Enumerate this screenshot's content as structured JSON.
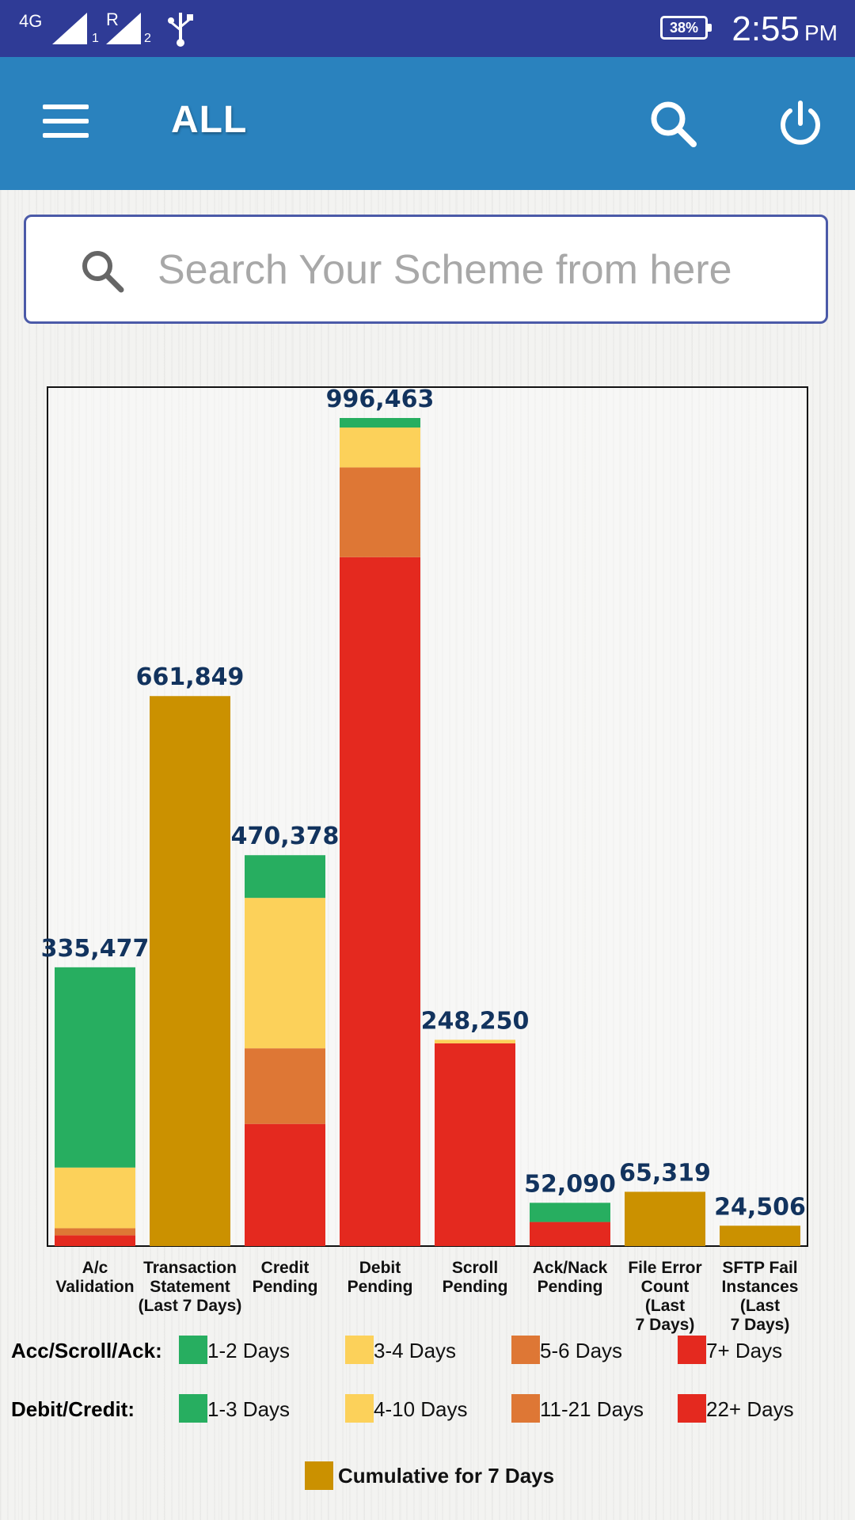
{
  "status_bar": {
    "network": "4G",
    "sim1": "1",
    "roaming": "R",
    "sim2": "2",
    "battery": "38%",
    "time": "2:55",
    "ampm": "PM"
  },
  "app_bar": {
    "title": "ALL",
    "menu_icon": "hamburger-menu-icon",
    "search_icon": "search-icon",
    "power_icon": "power-icon"
  },
  "search": {
    "placeholder": "Search Your Scheme from here",
    "icon": "search-icon"
  },
  "colors": {
    "green": "#27ae60",
    "yellow": "#fcd15a",
    "orange": "#de7735",
    "red": "#e4291f",
    "gold": "#cb9100",
    "value_label": "#12335e"
  },
  "chart_data": {
    "type": "bar",
    "stacked": true,
    "categories": [
      [
        "A/c",
        "Validation"
      ],
      [
        "Transaction",
        "Statement",
        "(Last 7 Days)"
      ],
      [
        "Credit",
        "Pending"
      ],
      [
        "Debit",
        "Pending"
      ],
      [
        "Scroll",
        "Pending"
      ],
      [
        "Ack/Nack",
        "Pending"
      ],
      [
        "File Error",
        "Count",
        "(Last",
        "7 Days)"
      ],
      [
        "SFTP Fail",
        "Instances",
        "(Last",
        "7 Days)"
      ]
    ],
    "totals": [
      335477,
      661849,
      470378,
      996463,
      248250,
      52090,
      65319,
      24506
    ],
    "total_labels": [
      "335,477",
      "661,849",
      "470,378",
      "996,463",
      "248,250",
      "52,090",
      "65,319",
      "24,506"
    ],
    "segments": [
      [
        {
          "color": "red",
          "value": 13000
        },
        {
          "color": "orange",
          "value": 8500
        },
        {
          "color": "yellow",
          "value": 73000
        },
        {
          "color": "green",
          "value": 240977
        }
      ],
      [
        {
          "color": "gold",
          "value": 661849
        }
      ],
      [
        {
          "color": "red",
          "value": 147000
        },
        {
          "color": "orange",
          "value": 91000
        },
        {
          "color": "yellow",
          "value": 181000
        },
        {
          "color": "green",
          "value": 51378
        }
      ],
      [
        {
          "color": "red",
          "value": 829000
        },
        {
          "color": "orange",
          "value": 108000
        },
        {
          "color": "yellow",
          "value": 48000
        },
        {
          "color": "green",
          "value": 11463
        }
      ],
      [
        {
          "color": "red",
          "value": 244000
        },
        {
          "color": "yellow",
          "value": 4250
        }
      ],
      [
        {
          "color": "red",
          "value": 29000
        },
        {
          "color": "green",
          "value": 23090
        }
      ],
      [
        {
          "color": "gold",
          "value": 65319
        }
      ],
      [
        {
          "color": "gold",
          "value": 24506
        }
      ]
    ],
    "ylim": [
      0,
      1100000
    ],
    "grid": false,
    "legend": {
      "placement": "bottom",
      "groups": [
        {
          "title": "Acc/Scroll/Ack:",
          "items": [
            {
              "color": "green",
              "label": "1-2 Days"
            },
            {
              "color": "yellow",
              "label": "3-4 Days"
            },
            {
              "color": "orange",
              "label": "5-6 Days"
            },
            {
              "color": "red",
              "label": "7+ Days"
            }
          ]
        },
        {
          "title": "Debit/Credit:",
          "items": [
            {
              "color": "green",
              "label": "1-3 Days"
            },
            {
              "color": "yellow",
              "label": "4-10 Days"
            },
            {
              "color": "orange",
              "label": "11-21 Days"
            },
            {
              "color": "red",
              "label": "22+ Days"
            }
          ]
        }
      ],
      "extra": {
        "color": "gold",
        "label": "Cumulative for 7 Days"
      }
    }
  }
}
